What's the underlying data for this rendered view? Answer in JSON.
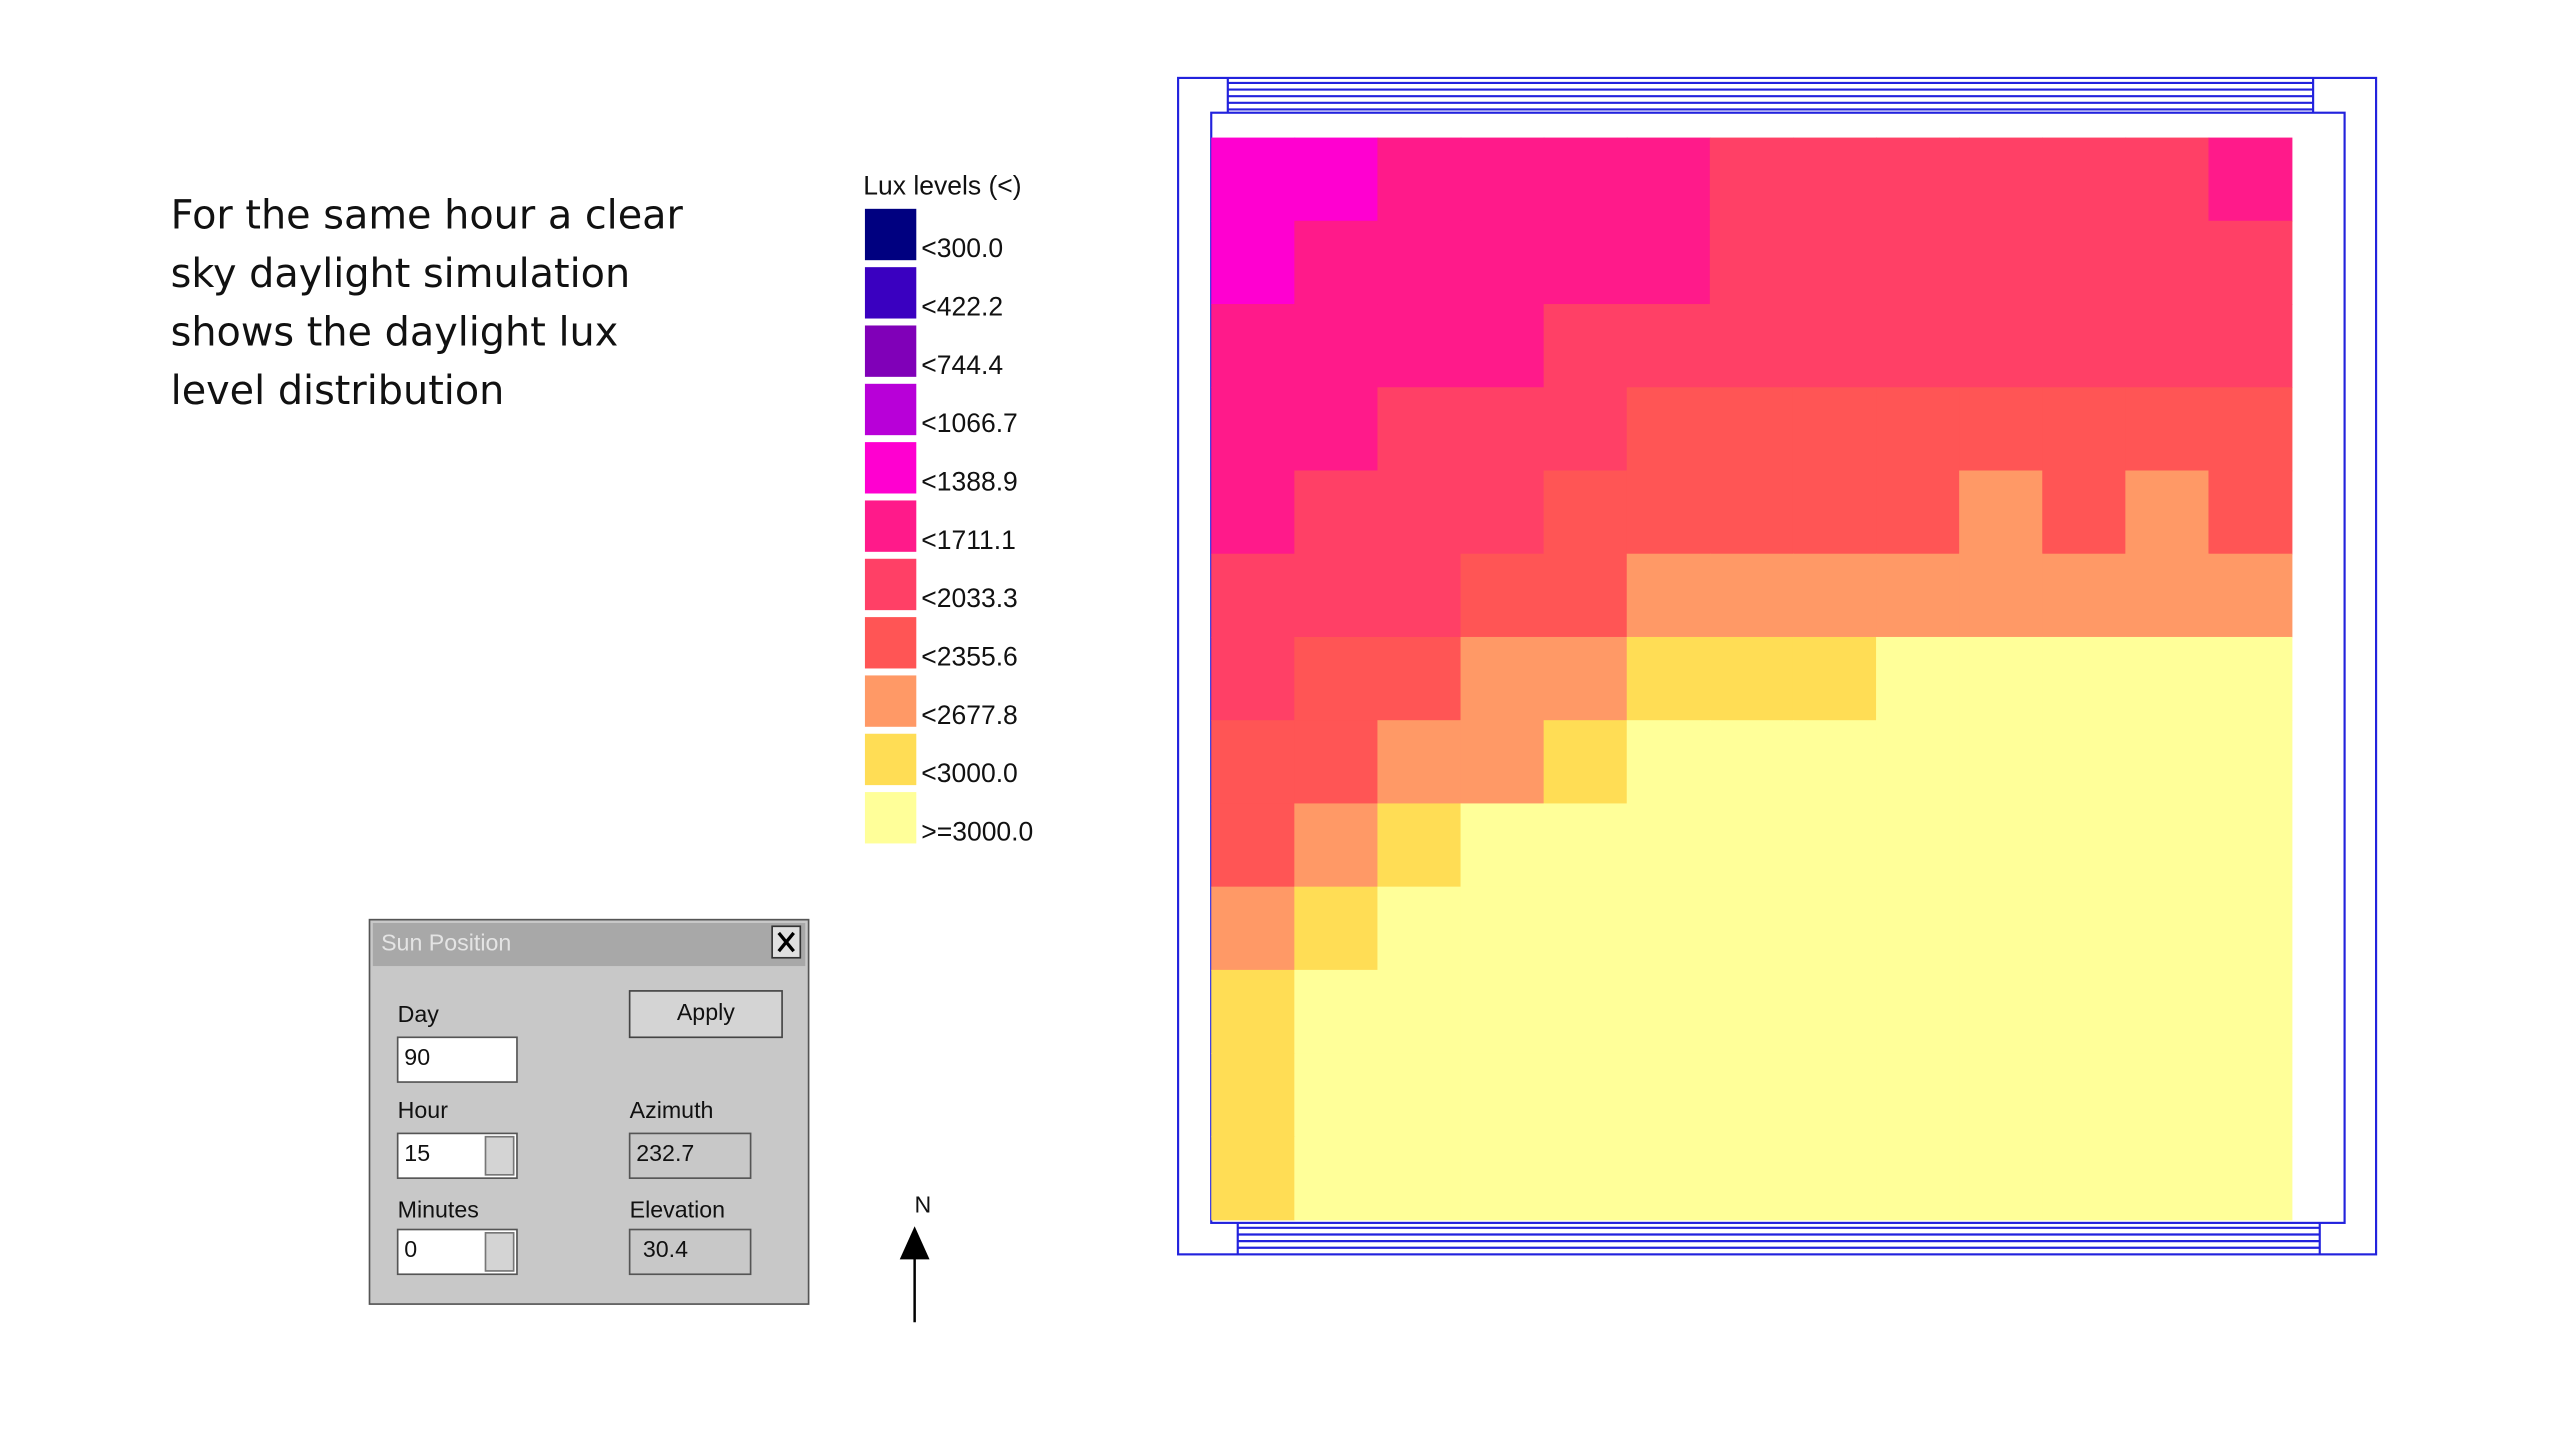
{
  "slide_text": [
    "For the same hour a clear",
    "sky daylight simulation",
    "shows the daylight lux",
    "level distribution"
  ],
  "legend": {
    "title": "Lux levels (<)",
    "items": [
      {
        "label": "<300.0",
        "color": "#000080"
      },
      {
        "label": "<422.2",
        "color": "#3a00c0"
      },
      {
        "label": "<744.4",
        "color": "#8000b8"
      },
      {
        "label": "<1066.7",
        "color": "#b800d8"
      },
      {
        "label": "<1388.9",
        "color": "#ff00d0"
      },
      {
        "label": "<1711.1",
        "color": "#ff1a8a"
      },
      {
        "label": "<2033.3",
        "color": "#ff4066"
      },
      {
        "label": "<2355.6",
        "color": "#ff5555"
      },
      {
        "label": "<2677.8",
        "color": "#ff9966"
      },
      {
        "label": "<3000.0",
        "color": "#ffdd55"
      },
      {
        "label": ">=3000.0",
        "color": "#ffff99"
      }
    ]
  },
  "heatmap": {
    "rows": [
      [
        4,
        4,
        5,
        5,
        5,
        5,
        6,
        6,
        6,
        6,
        6,
        6,
        5
      ],
      [
        4,
        5,
        5,
        5,
        5,
        5,
        6,
        6,
        6,
        6,
        6,
        6,
        6
      ],
      [
        5,
        5,
        5,
        5,
        6,
        6,
        6,
        6,
        6,
        6,
        6,
        6,
        6
      ],
      [
        5,
        5,
        6,
        6,
        6,
        7,
        7,
        7,
        7,
        7,
        7,
        7,
        7
      ],
      [
        5,
        6,
        6,
        6,
        7,
        7,
        7,
        7,
        7,
        8,
        7,
        8,
        7
      ],
      [
        6,
        6,
        6,
        7,
        7,
        8,
        8,
        8,
        8,
        8,
        8,
        8,
        8
      ],
      [
        6,
        7,
        7,
        8,
        8,
        9,
        9,
        9,
        10,
        10,
        10,
        10,
        10
      ],
      [
        7,
        7,
        8,
        8,
        9,
        10,
        10,
        10,
        10,
        10,
        10,
        10,
        10
      ],
      [
        7,
        8,
        9,
        10,
        10,
        10,
        10,
        10,
        10,
        10,
        10,
        10,
        10
      ],
      [
        8,
        9,
        10,
        10,
        10,
        10,
        10,
        10,
        10,
        10,
        10,
        10,
        10
      ],
      [
        9,
        10,
        10,
        10,
        10,
        10,
        10,
        10,
        10,
        10,
        10,
        10,
        10
      ],
      [
        9,
        10,
        10,
        10,
        10,
        10,
        10,
        10,
        10,
        10,
        10,
        10,
        10
      ],
      [
        9,
        10,
        10,
        10,
        10,
        10,
        10,
        10,
        10,
        10,
        10,
        10,
        10
      ]
    ]
  },
  "dialog": {
    "title": "Sun Position",
    "apply": "Apply",
    "day_label": "Day",
    "day": 90,
    "hour_label": "Hour",
    "hour": 15,
    "minutes_label": "Minutes",
    "minutes": 0,
    "azimuth_label": "Azimuth",
    "azimuth": 232.7,
    "elevation_label": "Elevation",
    "elevation": 30.4
  },
  "compass": "N"
}
